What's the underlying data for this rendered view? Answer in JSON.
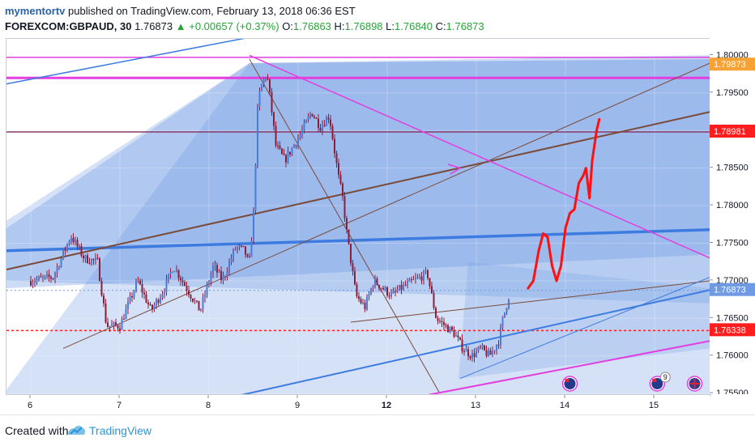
{
  "header": {
    "user": "mymentortv",
    "published_text": "published on TradingView.com, February 13, 2018 06:36 EST",
    "symbol": "FOREXCOM:GBPAUD, 30",
    "last": "1.76873",
    "change_arrow": "▲",
    "change": "+0.00657 (+0.37%)",
    "o_label": "O:",
    "o_value": "1.76863",
    "h_label": "H:",
    "h_value": "1.76898",
    "l_label": "L:",
    "l_value": "1.76840",
    "c_label": "C:",
    "c_value": "1.76873"
  },
  "footer": {
    "created_with": "Created with",
    "brand": "TradingView"
  },
  "colors": {
    "candle_body": "#8a1f3c",
    "zone_fill": "#6f9ae3",
    "trend_blue": "#3c7be0",
    "magenta": "#e23ee0",
    "brown": "#7a4a3a",
    "red_drawing": "#ff1010"
  },
  "chart_data": {
    "type": "candlestick",
    "symbol": "GBPAUD",
    "interval": "30",
    "ylim": [
      1.7548,
      1.8022
    ],
    "y_ticks": [
      "1.80000",
      "1.79500",
      "1.79000",
      "1.78500",
      "1.78000",
      "1.77500",
      "1.77000",
      "1.76500",
      "1.76000",
      "1.75500"
    ],
    "x_ticks": [
      "6",
      "7",
      "8",
      "9",
      "12",
      "13",
      "14",
      "15"
    ],
    "price_tags": [
      {
        "label": "1.79873",
        "value": 1.79873,
        "color": "#f7a234"
      },
      {
        "label": "1.78981",
        "value": 1.78981,
        "color": "#ff1d1d"
      },
      {
        "label": "1.76873",
        "value": 1.76873,
        "color": "#6f9ae3"
      },
      {
        "label": "1.76338",
        "value": 1.76338,
        "color": "#ff1d1d"
      }
    ],
    "close_path": [
      [
        0,
        1.77
      ],
      [
        0.25,
        1.7705
      ],
      [
        0.45,
        1.776
      ],
      [
        0.6,
        1.773
      ],
      [
        0.75,
        1.7725
      ],
      [
        0.85,
        1.764
      ],
      [
        1.0,
        1.764
      ],
      [
        1.2,
        1.77
      ],
      [
        1.35,
        1.766
      ],
      [
        1.5,
        1.769
      ],
      [
        1.6,
        1.772
      ],
      [
        1.75,
        1.769
      ],
      [
        1.9,
        1.766
      ],
      [
        2.05,
        1.772
      ],
      [
        2.15,
        1.77
      ],
      [
        2.3,
        1.7745
      ],
      [
        2.4,
        1.774
      ],
      [
        2.45,
        1.772
      ],
      [
        2.5,
        1.779
      ],
      [
        2.55,
        1.794
      ],
      [
        2.6,
        1.7965
      ],
      [
        2.65,
        1.7975
      ],
      [
        2.7,
        1.793
      ],
      [
        2.75,
        1.788
      ],
      [
        2.85,
        1.786
      ],
      [
        2.95,
        1.788
      ],
      [
        3.05,
        1.79
      ],
      [
        3.15,
        1.7925
      ],
      [
        3.25,
        1.7905
      ],
      [
        3.35,
        1.792
      ],
      [
        3.4,
        1.788
      ],
      [
        3.45,
        1.784
      ],
      [
        3.5,
        1.781
      ],
      [
        3.55,
        1.776
      ],
      [
        3.6,
        1.772
      ],
      [
        3.65,
        1.768
      ],
      [
        3.75,
        1.7665
      ],
      [
        3.85,
        1.77
      ],
      [
        3.95,
        1.769
      ],
      [
        4.05,
        1.768
      ],
      [
        4.15,
        1.769
      ],
      [
        4.3,
        1.77
      ],
      [
        4.45,
        1.771
      ],
      [
        4.55,
        1.765
      ],
      [
        4.65,
        1.764
      ],
      [
        4.75,
        1.763
      ],
      [
        4.85,
        1.761
      ],
      [
        4.95,
        1.76
      ],
      [
        5.05,
        1.761
      ],
      [
        5.15,
        1.76
      ],
      [
        5.25,
        1.762
      ],
      [
        5.3,
        1.765
      ],
      [
        5.38,
        1.7687
      ]
    ],
    "levels": [
      {
        "name": "resistance-magenta",
        "value": 1.797,
        "color": "#e23ee0"
      },
      {
        "name": "horizontal-brown",
        "value": 1.78981,
        "color": "#8a3a6a"
      },
      {
        "name": "support-red-dotted",
        "value": 1.76338,
        "color": "#ff1d1d"
      },
      {
        "name": "top-magenta-thin",
        "value": 1.7997,
        "color": "#e23ee0"
      }
    ],
    "annotations": [
      {
        "kind": "forecast-path",
        "color": "#ff1010",
        "note": "hand-drawn projection up to ~1.7910"
      }
    ]
  }
}
